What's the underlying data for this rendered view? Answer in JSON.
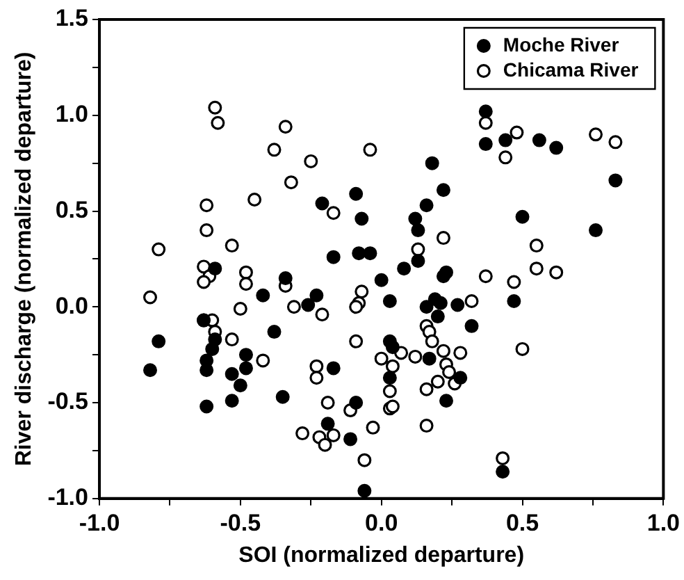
{
  "chart_data": {
    "type": "scatter",
    "xlabel": "SOI (normalized departure)",
    "ylabel": "River discharge (normalized departure)",
    "xlim": [
      -1.0,
      1.0
    ],
    "ylim": [
      -1.0,
      1.5
    ],
    "xticks": [
      {
        "value": -1.0,
        "label": "-1.0"
      },
      {
        "value": -0.75,
        "label": null
      },
      {
        "value": -0.5,
        "label": "-0.5"
      },
      {
        "value": -0.25,
        "label": null
      },
      {
        "value": 0,
        "label": "0.0"
      },
      {
        "value": 0.25,
        "label": null
      },
      {
        "value": 0.5,
        "label": "0.5"
      },
      {
        "value": 0.75,
        "label": null
      },
      {
        "value": 1.0,
        "label": "1.0"
      }
    ],
    "yticks": [
      {
        "value": -1.0,
        "label": "-1.0"
      },
      {
        "value": -0.75,
        "label": null
      },
      {
        "value": -0.5,
        "label": "-0.5"
      },
      {
        "value": -0.25,
        "label": null
      },
      {
        "value": 0,
        "label": "0.0"
      },
      {
        "value": 0.25,
        "label": null
      },
      {
        "value": 0.5,
        "label": "0.5"
      },
      {
        "value": 0.75,
        "label": null
      },
      {
        "value": 1.0,
        "label": "1.0"
      },
      {
        "value": 1.25,
        "label": null
      },
      {
        "value": 1.5,
        "label": "1.5"
      }
    ],
    "grid": false,
    "legend": "top right",
    "marker": "circle",
    "series": [
      {
        "name": "Moche River",
        "color": "#000000",
        "x": [
          -0.21,
          -0.09,
          -0.07,
          -0.17,
          -0.08,
          -0.04,
          -0.59,
          -0.34,
          0.0,
          -0.42,
          -0.23,
          -0.26,
          0.03,
          0.37,
          0.37,
          0.44,
          0.56,
          0.62,
          0.18,
          0.22,
          0.16,
          0.12,
          0.13,
          0.5,
          0.83,
          0.76,
          0.13,
          0.08,
          0.23,
          0.22,
          0.19,
          0.21,
          0.16,
          0.27,
          0.47,
          -0.63,
          -0.79,
          -0.59,
          -0.6,
          -0.62,
          -0.62,
          -0.82,
          -0.48,
          -0.48,
          -0.53,
          -0.5,
          -0.53,
          -0.62,
          -0.38,
          -0.35,
          -0.17,
          -0.09,
          -0.19,
          -0.11,
          -0.06,
          0.03,
          0.03,
          0.2,
          0.32,
          0.04,
          0.17,
          0.28,
          0.23,
          0.43
        ],
        "values": [
          0.54,
          0.59,
          0.46,
          0.26,
          0.28,
          0.28,
          0.2,
          0.15,
          0.14,
          0.06,
          0.06,
          0.01,
          0.03,
          1.02,
          0.85,
          0.87,
          0.87,
          0.83,
          0.75,
          0.61,
          0.53,
          0.46,
          0.4,
          0.47,
          0.66,
          0.4,
          0.24,
          0.2,
          0.18,
          0.16,
          0.04,
          0.02,
          0.0,
          0.01,
          0.03,
          -0.07,
          -0.18,
          -0.17,
          -0.22,
          -0.28,
          -0.33,
          -0.33,
          -0.25,
          -0.32,
          -0.35,
          -0.41,
          -0.49,
          -0.52,
          -0.13,
          -0.47,
          -0.32,
          -0.5,
          -0.61,
          -0.69,
          -0.96,
          -0.18,
          -0.37,
          -0.05,
          -0.1,
          -0.21,
          -0.27,
          -0.37,
          -0.49,
          -0.86
        ]
      },
      {
        "name": "Chicama River",
        "color": "#000000",
        "x": [
          -0.59,
          -0.58,
          -0.34,
          -0.38,
          -0.25,
          -0.04,
          -0.32,
          -0.45,
          -0.62,
          -0.17,
          -0.62,
          -0.53,
          -0.79,
          -0.63,
          -0.61,
          -0.63,
          -0.48,
          -0.48,
          -0.34,
          -0.07,
          -0.08,
          -0.82,
          -0.5,
          -0.31,
          -0.09,
          0.37,
          0.48,
          0.76,
          0.83,
          0.44,
          0.22,
          0.13,
          0.55,
          0.55,
          0.62,
          0.37,
          0.47,
          0.32,
          -0.21,
          -0.63,
          -0.6,
          -0.59,
          -0.53,
          -0.42,
          -0.09,
          0.0,
          -0.23,
          -0.23,
          -0.19,
          -0.11,
          -0.28,
          -0.22,
          -0.2,
          -0.17,
          -0.03,
          -0.06,
          0.03,
          0.03,
          0.16,
          0.17,
          0.18,
          0.04,
          0.07,
          0.12,
          0.22,
          0.28,
          0.23,
          0.24,
          0.2,
          0.16,
          0.26,
          0.04,
          0.16,
          0.5,
          0.43
        ],
        "values": [
          1.04,
          0.96,
          0.94,
          0.82,
          0.76,
          0.82,
          0.65,
          0.56,
          0.53,
          0.49,
          0.4,
          0.32,
          0.3,
          0.21,
          0.16,
          0.13,
          0.18,
          0.12,
          0.11,
          0.08,
          0.02,
          0.05,
          -0.01,
          0.0,
          0.0,
          0.96,
          0.91,
          0.9,
          0.86,
          0.78,
          0.36,
          0.3,
          0.32,
          0.2,
          0.18,
          0.16,
          0.13,
          0.03,
          -0.04,
          -0.07,
          -0.07,
          -0.13,
          -0.17,
          -0.28,
          -0.18,
          -0.27,
          -0.31,
          -0.37,
          -0.5,
          -0.54,
          -0.66,
          -0.68,
          -0.72,
          -0.67,
          -0.63,
          -0.8,
          -0.44,
          -0.53,
          -0.1,
          -0.13,
          -0.18,
          -0.31,
          -0.24,
          -0.26,
          -0.23,
          -0.24,
          -0.3,
          -0.34,
          -0.39,
          -0.43,
          -0.4,
          -0.52,
          -0.62,
          -0.22,
          -0.79
        ]
      }
    ]
  }
}
